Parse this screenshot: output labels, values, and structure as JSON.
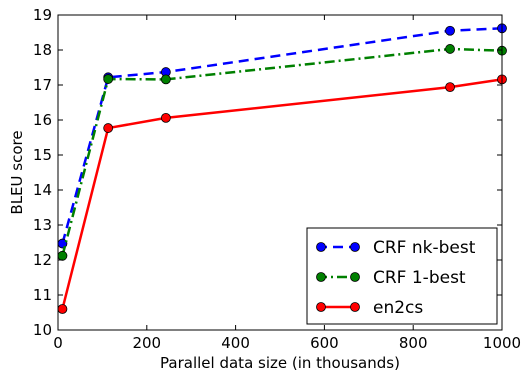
{
  "chart_data": {
    "type": "line",
    "xlabel": "Parallel data size (in thousands)",
    "ylabel": "BLEU score",
    "xlim": [
      0,
      1000
    ],
    "ylim": [
      10,
      19
    ],
    "xticks": [
      0,
      200,
      400,
      600,
      800,
      1000
    ],
    "yticks": [
      10,
      11,
      12,
      13,
      14,
      15,
      16,
      17,
      18,
      19
    ],
    "grid": false,
    "legend_position": "bottom-right",
    "series": [
      {
        "name": "CRF nk-best",
        "color": "#0000ff",
        "style": "dashed",
        "x": [
          10,
          113,
          243,
          883,
          1000
        ],
        "y": [
          12.47,
          17.22,
          17.37,
          18.55,
          18.62
        ]
      },
      {
        "name": "CRF 1-best",
        "color": "#008000",
        "style": "dashdot",
        "x": [
          10,
          113,
          243,
          883,
          1000
        ],
        "y": [
          12.12,
          17.17,
          17.16,
          18.03,
          17.98
        ]
      },
      {
        "name": "en2cs",
        "color": "#ff0000",
        "style": "solid",
        "x": [
          10,
          113,
          243,
          883,
          1000
        ],
        "y": [
          10.6,
          15.77,
          16.06,
          16.94,
          17.16
        ]
      }
    ]
  }
}
